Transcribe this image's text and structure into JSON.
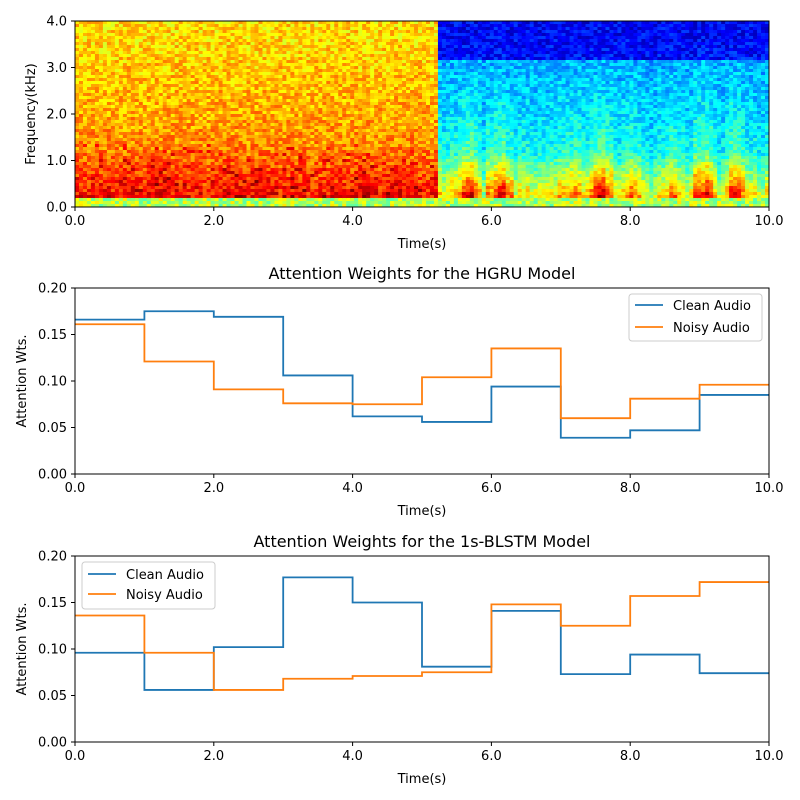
{
  "chart_data": [
    {
      "type": "heatmap",
      "title": "",
      "xlabel": "Time(s)",
      "ylabel": "Frequency(kHz)",
      "xlim": [
        0,
        10
      ],
      "ylim": [
        0,
        4
      ],
      "x_ticks": [
        "0.0",
        "2.0",
        "4.0",
        "6.0",
        "8.0",
        "10.0"
      ],
      "y_ticks": [
        "0.0",
        "1.0",
        "2.0",
        "3.0",
        "4.0"
      ],
      "colormap": "jet",
      "noise_until": 5.2
    },
    {
      "type": "line",
      "title": "Attention Weights for the HGRU Model",
      "xlabel": "Time(s)",
      "ylabel": "Attention Wts.",
      "xlim": [
        0,
        10
      ],
      "ylim": [
        0,
        0.2
      ],
      "x_ticks": [
        "0.0",
        "2.0",
        "4.0",
        "6.0",
        "8.0",
        "10.0"
      ],
      "y_ticks": [
        "0.00",
        "0.05",
        "0.10",
        "0.15",
        "0.20"
      ],
      "legend_position": "top-right",
      "series": [
        {
          "name": "Clean Audio",
          "color": "#1f77b4",
          "values": [
            0.166,
            0.175,
            0.169,
            0.106,
            0.062,
            0.056,
            0.094,
            0.039,
            0.047,
            0.085
          ]
        },
        {
          "name": "Noisy Audio",
          "color": "#ff7f0e",
          "values": [
            0.161,
            0.121,
            0.091,
            0.076,
            0.075,
            0.104,
            0.135,
            0.06,
            0.081,
            0.096
          ]
        }
      ]
    },
    {
      "type": "line",
      "title": "Attention Weights for the 1s-BLSTM Model",
      "xlabel": "Time(s)",
      "ylabel": "Attention Wts.",
      "xlim": [
        0,
        10
      ],
      "ylim": [
        0,
        0.2
      ],
      "x_ticks": [
        "0.0",
        "2.0",
        "4.0",
        "6.0",
        "8.0",
        "10.0"
      ],
      "y_ticks": [
        "0.00",
        "0.05",
        "0.10",
        "0.15",
        "0.20"
      ],
      "legend_position": "top-left",
      "series": [
        {
          "name": "Clean Audio",
          "color": "#1f77b4",
          "values": [
            0.096,
            0.056,
            0.102,
            0.177,
            0.15,
            0.081,
            0.141,
            0.073,
            0.094,
            0.074
          ]
        },
        {
          "name": "Noisy Audio",
          "color": "#ff7f0e",
          "values": [
            0.136,
            0.096,
            0.056,
            0.068,
            0.071,
            0.075,
            0.148,
            0.125,
            0.157,
            0.172
          ]
        }
      ]
    }
  ]
}
